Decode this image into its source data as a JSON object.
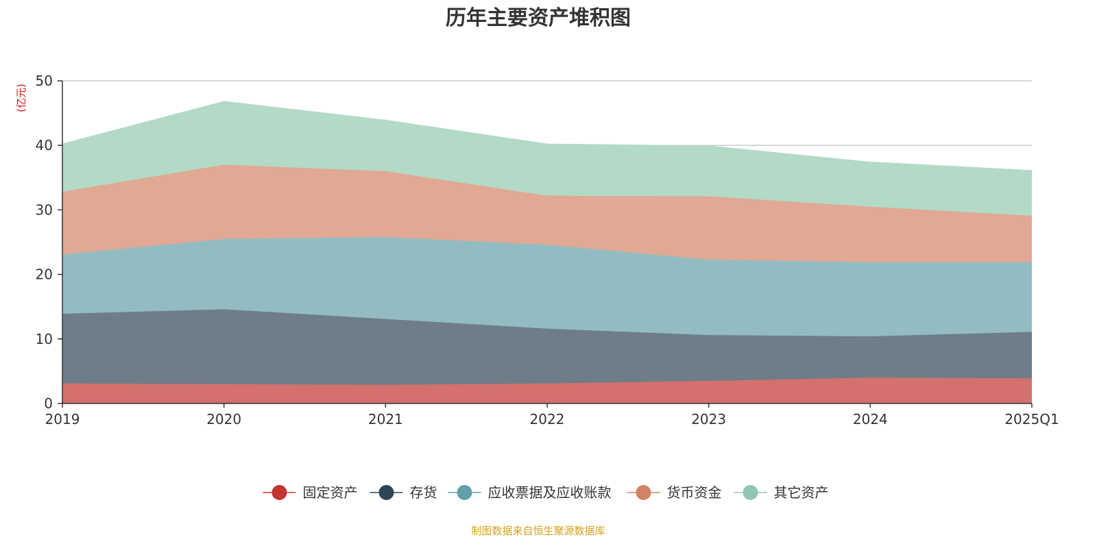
{
  "chart_data": {
    "type": "area",
    "stacked": true,
    "title": "历年主要资产堆积图",
    "ylabel": "(亿元)",
    "xlabel": "",
    "ylim": [
      0,
      50
    ],
    "yticks": [
      0,
      10,
      20,
      30,
      40,
      50
    ],
    "grid": true,
    "legend_position": "bottom",
    "categories": [
      "2019",
      "2020",
      "2021",
      "2022",
      "2023",
      "2024",
      "2025Q1"
    ],
    "series": [
      {
        "name": "固定资产",
        "color": "#c23531",
        "fill": "#d4706d",
        "values": [
          3.1,
          3.0,
          2.9,
          3.1,
          3.5,
          4.0,
          3.9
        ]
      },
      {
        "name": "存货",
        "color": "#2f4554",
        "fill": "#6e7d88",
        "values": [
          10.8,
          11.6,
          10.2,
          8.5,
          7.1,
          6.4,
          7.2
        ]
      },
      {
        "name": "应收票据及应收账款",
        "color": "#61a0a8",
        "fill": "#93bcc2",
        "values": [
          9.2,
          10.9,
          12.7,
          13.0,
          11.7,
          11.5,
          10.8
        ]
      },
      {
        "name": "货币资金",
        "color": "#d48265",
        "fill": "#e1a893",
        "values": [
          9.7,
          11.5,
          10.2,
          7.6,
          9.8,
          8.6,
          7.2
        ]
      },
      {
        "name": "其它资产",
        "color": "#91c7ae",
        "fill": "#b3d9c7",
        "values": [
          7.4,
          9.8,
          7.9,
          8.0,
          7.8,
          6.9,
          7.0
        ]
      }
    ],
    "source": "制图数据来自恒生聚源数据库"
  }
}
